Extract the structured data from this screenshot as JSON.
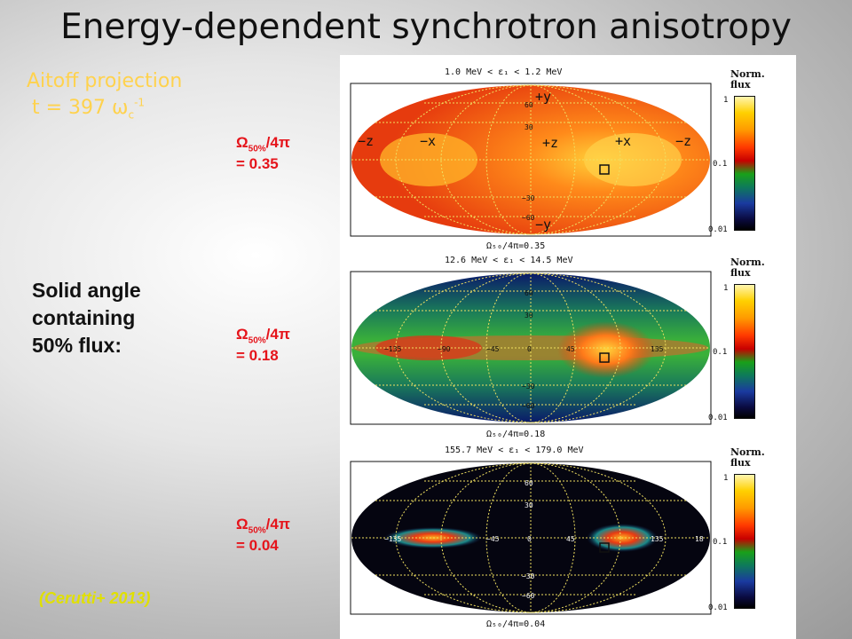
{
  "title": "Energy-dependent synchrotron anisotropy",
  "projection": {
    "label": "Aitoff projection",
    "time_prefix": "t = 397 ω",
    "time_sub": "c",
    "time_sup": "-1"
  },
  "solid_angle": {
    "line1": "Solid angle",
    "line2": "containing",
    "line3": "50% flux:"
  },
  "omega_labels": [
    {
      "symbol": "Ω",
      "sub": "50%",
      "rest": "/4π",
      "value": "= 0.35"
    },
    {
      "symbol": "Ω",
      "sub": "50%",
      "rest": "/4π",
      "value": "= 0.18"
    },
    {
      "symbol": "Ω",
      "sub": "50%",
      "rest": "/4π",
      "value": "= 0.04"
    }
  ],
  "citation": "(Cerutti+ 2013)",
  "panels": [
    {
      "header": "1.0 MeV  < ε₁ <   1.2 MeV",
      "footer": "Ω₅₀/4π=0.35",
      "axis_labels": [
        "+y",
        "−z",
        "−x",
        "+z",
        "+x",
        "−z",
        "−y"
      ]
    },
    {
      "header": "12.6 MeV < ε₁ <  14.5 MeV",
      "footer": "Ω₅₀/4π=0.18"
    },
    {
      "header": "155.7 MeV < ε₁ < 179.0 MeV",
      "footer": "Ω₅₀/4π=0.04"
    }
  ],
  "colorbar": {
    "title_line1": "Norm.",
    "title_line2": "flux",
    "ticks": [
      "1",
      "0.1",
      "0.01"
    ]
  },
  "grid_lat_labels": [
    "60",
    "30",
    "0",
    "−30",
    "−60"
  ],
  "grid_lon_labels": [
    "−135",
    "−90",
    "−45",
    "0",
    "45",
    "90",
    "135",
    "18"
  ]
}
